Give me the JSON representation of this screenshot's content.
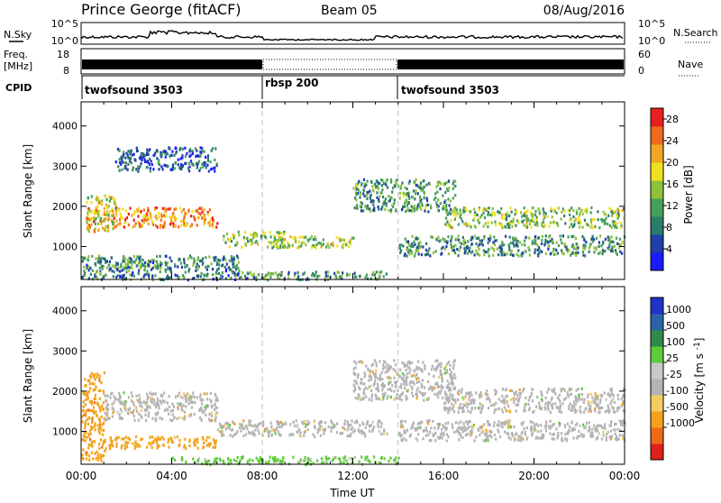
{
  "header": {
    "station": "Prince George (fitACF)",
    "beam": "Beam 05",
    "date": "08/Aug/2016"
  },
  "strips": {
    "nsky_label": "N.Sky",
    "nsky_ticks": [
      "10^5",
      "10^0"
    ],
    "nsearch_label": "N.Search",
    "nsearch_ticks": [
      "10^5",
      "10^0"
    ],
    "freq_label": "Freq.",
    "freq_unit": "[MHz]",
    "freq_ticks": [
      "18",
      "8"
    ],
    "nave_label": "Nave",
    "nave_ticks": [
      "60",
      "0"
    ],
    "cpid_label": "CPID",
    "cpid_segments": [
      {
        "name": "twofsound 3503",
        "start": 0,
        "end": 8
      },
      {
        "name": "rbsp 200",
        "start": 8,
        "end": 14
      },
      {
        "name": "twofsound 3503",
        "start": 14,
        "end": 24
      }
    ]
  },
  "colors": {
    "power": [
      "#1a1aff",
      "#1f3fa8",
      "#2c7c6a",
      "#46a05a",
      "#8fc23b",
      "#f0e020",
      "#f2a623",
      "#ef6a1e",
      "#e81f1f"
    ],
    "velocity": [
      "#e0201a",
      "#ee6a14",
      "#f4a21c",
      "#f4cc60",
      "#b4b4b4",
      "#c8c8c8",
      "#5ecb3a",
      "#2f8a4a",
      "#2a63a8",
      "#2233c8"
    ],
    "dashed": "#c0c0c0"
  },
  "chart_data": [
    {
      "type": "heatmap",
      "title": "",
      "xlabel": "Time UT",
      "ylabel": "Slant Range [km]",
      "x_ticks": [
        "00:00",
        "04:00",
        "08:00",
        "12:00",
        "16:00",
        "20:00",
        "00:00"
      ],
      "xlim": [
        0,
        24
      ],
      "ylim": [
        180,
        4600
      ],
      "y_ticks": [
        1000,
        2000,
        3000,
        4000
      ],
      "colorbar": {
        "label": "Power [dB]",
        "ticks": [
          4,
          8,
          12,
          16,
          20,
          24,
          28
        ],
        "range": [
          0,
          30
        ]
      },
      "regions": [
        {
          "x": [
            0.2,
            6.0
          ],
          "y": [
            1500,
            2000
          ],
          "level": 24
        },
        {
          "x": [
            0.2,
            1.5
          ],
          "y": [
            1400,
            2300
          ],
          "level": 18
        },
        {
          "x": [
            1.0,
            3.5
          ],
          "y": [
            500,
            700
          ],
          "level": 12
        },
        {
          "x": [
            0.0,
            7.0
          ],
          "y": [
            200,
            800
          ],
          "level": 8
        },
        {
          "x": [
            6.2,
            9.0
          ],
          "y": [
            1000,
            1400
          ],
          "level": 14
        },
        {
          "x": [
            7.0,
            13.5
          ],
          "y": [
            200,
            400
          ],
          "level": 10
        },
        {
          "x": [
            8.5,
            12.0
          ],
          "y": [
            1000,
            1300
          ],
          "level": 16
        },
        {
          "x": [
            12.0,
            16.5
          ],
          "y": [
            1900,
            2700
          ],
          "level": 10
        },
        {
          "x": [
            14.0,
            24.0
          ],
          "y": [
            800,
            1300
          ],
          "level": 10
        },
        {
          "x": [
            16.0,
            24.0
          ],
          "y": [
            1500,
            2000
          ],
          "level": 14
        },
        {
          "x": [
            1.5,
            6.0
          ],
          "y": [
            2900,
            3500
          ],
          "level": 6
        }
      ]
    },
    {
      "type": "heatmap",
      "title": "",
      "xlabel": "Time UT",
      "ylabel": "Slant Range [km]",
      "x_ticks": [
        "00:00",
        "04:00",
        "08:00",
        "12:00",
        "16:00",
        "20:00",
        "00:00"
      ],
      "xlim": [
        0,
        24
      ],
      "ylim": [
        180,
        4600
      ],
      "y_ticks": [
        1000,
        2000,
        3000,
        4000
      ],
      "colorbar": {
        "label": "Velocity [m s^-1]",
        "ticks": [
          1000,
          500,
          100,
          25,
          -25,
          -100,
          -500,
          -1000
        ]
      },
      "regions": [
        {
          "x": [
            0.0,
            1.0
          ],
          "y": [
            300,
            2500
          ],
          "level": -500
        },
        {
          "x": [
            1.0,
            6.0
          ],
          "y": [
            600,
            900
          ],
          "level": -200
        },
        {
          "x": [
            1.0,
            6.0
          ],
          "y": [
            1300,
            2000
          ],
          "level": 0
        },
        {
          "x": [
            6.0,
            13.5
          ],
          "y": [
            900,
            1300
          ],
          "level": 0
        },
        {
          "x": [
            4.0,
            14.0
          ],
          "y": [
            200,
            400
          ],
          "level": 100
        },
        {
          "x": [
            12.0,
            16.5
          ],
          "y": [
            1800,
            2800
          ],
          "level": 0
        },
        {
          "x": [
            14.0,
            24.0
          ],
          "y": [
            800,
            1300
          ],
          "level": 0
        },
        {
          "x": [
            16.0,
            24.0
          ],
          "y": [
            1500,
            2100
          ],
          "level": 0
        }
      ]
    }
  ]
}
